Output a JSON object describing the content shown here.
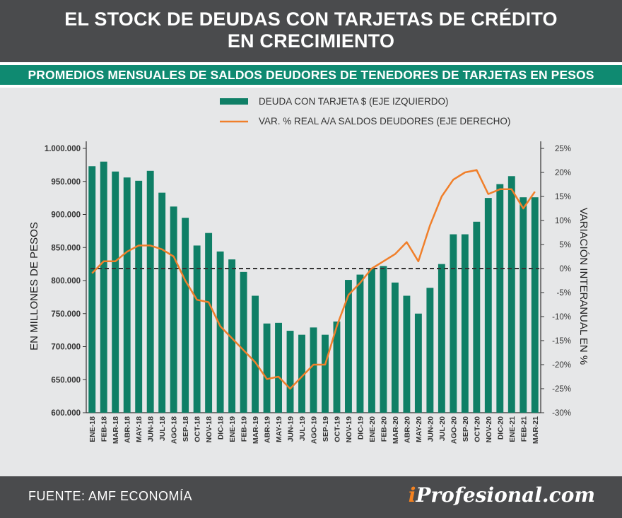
{
  "header": {
    "title_line1": "EL STOCK DE DEUDAS CON TARJETAS DE CRÉDITO",
    "title_line2": "EN CRECIMIENTO",
    "subtitle": "PROMEDIOS MENSUALES DE SALDOS DEUDORES DE TENEDORES DE TARJETAS EN PESOS"
  },
  "footer": {
    "source": "FUENTE: AMF ECONOMÍA",
    "brand_mark": "i",
    "brand_rest": "Profesional.com"
  },
  "colors": {
    "bar": "#0f7f66",
    "line": "#f07f2a",
    "header_bg": "#4a4b4d",
    "subtitle_bg": "#0f8a71",
    "plot_bg": "#e6e7e8"
  },
  "chart_data": {
    "type": "bar",
    "title": "EL STOCK DE DEUDAS CON TARJETAS DE CRÉDITO EN CRECIMIENTO",
    "categories": [
      "ENE-18",
      "FEB-18",
      "MAR-18",
      "ABR-18",
      "MAY-18",
      "JUN-18",
      "JUL-18",
      "AGO-18",
      "SEP-18",
      "OCT-18",
      "NOV-18",
      "DIC-18",
      "ENE-19",
      "FEB-19",
      "MAR-19",
      "ABR-19",
      "MAY-19",
      "JUN-19",
      "JUL-19",
      "AGO-19",
      "SEP-19",
      "OCT-19",
      "NOV-19",
      "DIC-19",
      "ENE-20",
      "FEB-20",
      "MAR-20",
      "ABR-20",
      "MAY-20",
      "JUN-20",
      "JUL-20",
      "AGO-20",
      "SEP-20",
      "OCT-20",
      "NOV-20",
      "DIC-20",
      "ENE-21",
      "FEB-21",
      "MAR-21"
    ],
    "series": [
      {
        "name": "DEUDA CON TARJETA $ (EJE IZQUIERDO)",
        "type": "bar",
        "axis": "left",
        "values": [
          973000,
          980000,
          965000,
          956000,
          951000,
          966000,
          933000,
          912000,
          895000,
          853000,
          872000,
          844000,
          832000,
          813000,
          777000,
          735000,
          736000,
          724000,
          718000,
          729000,
          718000,
          738000,
          801000,
          809000,
          819000,
          822000,
          797000,
          777000,
          750000,
          789000,
          825000,
          870000,
          870000,
          889000,
          925000,
          946000,
          958000,
          926000,
          926000
        ]
      },
      {
        "name": "VAR. % REAL A/A SALDOS DEUDORES (EJE DERECHO)",
        "type": "line",
        "axis": "right",
        "values": [
          -1.0,
          1.5,
          1.5,
          3.5,
          4.8,
          4.8,
          4.0,
          2.5,
          -2.5,
          -6.5,
          -7.0,
          -12.0,
          -14.5,
          -17.0,
          -19.5,
          -23.0,
          -22.5,
          -25.0,
          -22.5,
          -20.0,
          -20.0,
          -12.0,
          -5.5,
          -3.0,
          0.0,
          1.5,
          3.0,
          5.5,
          1.5,
          9.0,
          15.0,
          18.5,
          20.0,
          20.5,
          15.5,
          16.5,
          16.5,
          12.5,
          16.0
        ]
      }
    ],
    "ylabel": "EN MILLONES DE PESOS",
    "ylim": [
      600000,
      1000000
    ],
    "yticks": [
      600000,
      650000,
      700000,
      750000,
      800000,
      850000,
      900000,
      950000,
      1000000
    ],
    "ytick_labels": [
      "600.000",
      "650.000",
      "700.000",
      "750.000",
      "800.000",
      "850.000",
      "900.000",
      "950.000",
      "1.000.000"
    ],
    "y2label": "VARIACIÓN INTERANUAL EN %",
    "y2lim": [
      -30,
      25
    ],
    "y2ticks": [
      -30,
      -25,
      -20,
      -15,
      -10,
      -5,
      0,
      5,
      10,
      15,
      20,
      25
    ],
    "y2tick_labels": [
      "-30%",
      "-25%",
      "-20%",
      "-15%",
      "-10%",
      "-5%",
      "0%",
      "5%",
      "10%",
      "15%",
      "20%",
      "25%"
    ],
    "reference_line": 0,
    "grid": false,
    "legend": "top-center"
  }
}
